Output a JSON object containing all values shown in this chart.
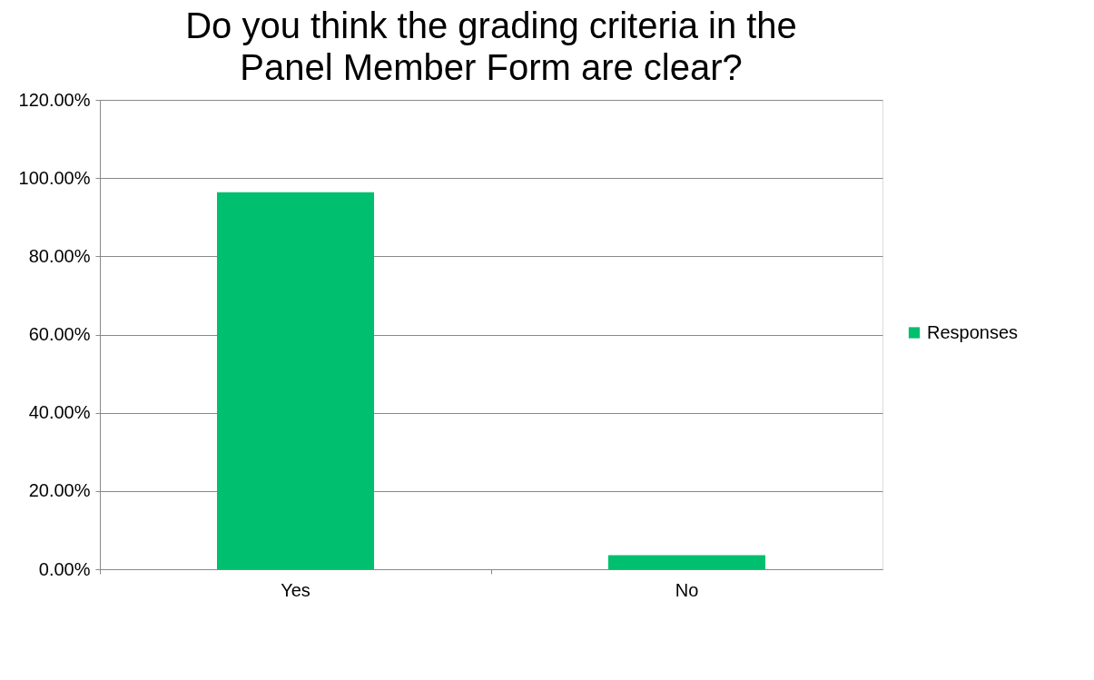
{
  "chart_data": {
    "type": "bar",
    "title": "Do you think the grading criteria in the Panel Member Form are clear?",
    "categories": [
      "Yes",
      "No"
    ],
    "series": [
      {
        "name": "Responses",
        "color": "#00bf6f",
        "values": [
          96.4,
          3.6
        ]
      }
    ],
    "ylim": [
      0,
      120
    ],
    "yticks": [
      {
        "value": 0,
        "label": "0.00%"
      },
      {
        "value": 20,
        "label": "20.00%"
      },
      {
        "value": 40,
        "label": "40.00%"
      },
      {
        "value": 60,
        "label": "60.00%"
      },
      {
        "value": 80,
        "label": "80.00%"
      },
      {
        "value": 100,
        "label": "100.00%"
      },
      {
        "value": 120,
        "label": "120.00%"
      }
    ],
    "grid": "y",
    "legend": "right"
  }
}
